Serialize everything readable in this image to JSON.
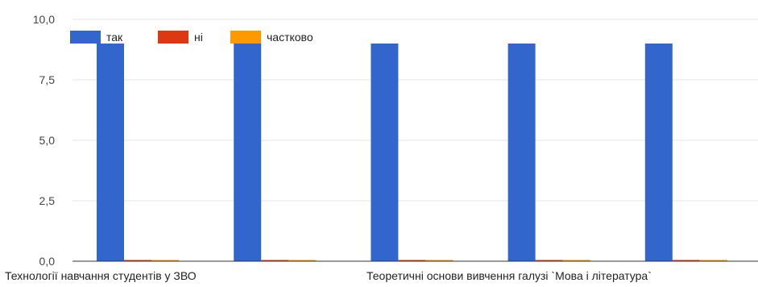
{
  "chart_data": {
    "type": "bar",
    "categories": [
      "Технології навчання студентів у ЗВО",
      "",
      "",
      "Теоретичні основи вивчення галузі `Мова і література`",
      ""
    ],
    "series": [
      {
        "name": "так",
        "color": "#3366cc",
        "values": [
          9,
          9,
          9,
          9,
          9
        ]
      },
      {
        "name": "ні",
        "color": "#dc3912",
        "values": [
          0,
          0,
          0,
          0,
          0
        ]
      },
      {
        "name": "частково",
        "color": "#ff9900",
        "values": [
          0,
          0,
          0,
          0,
          0
        ]
      }
    ],
    "y_ticks": [
      "0,0",
      "2,5",
      "5,0",
      "7,5",
      "10,0"
    ],
    "ylim": [
      0,
      10
    ],
    "grid": true,
    "legend_position": "top-left"
  }
}
